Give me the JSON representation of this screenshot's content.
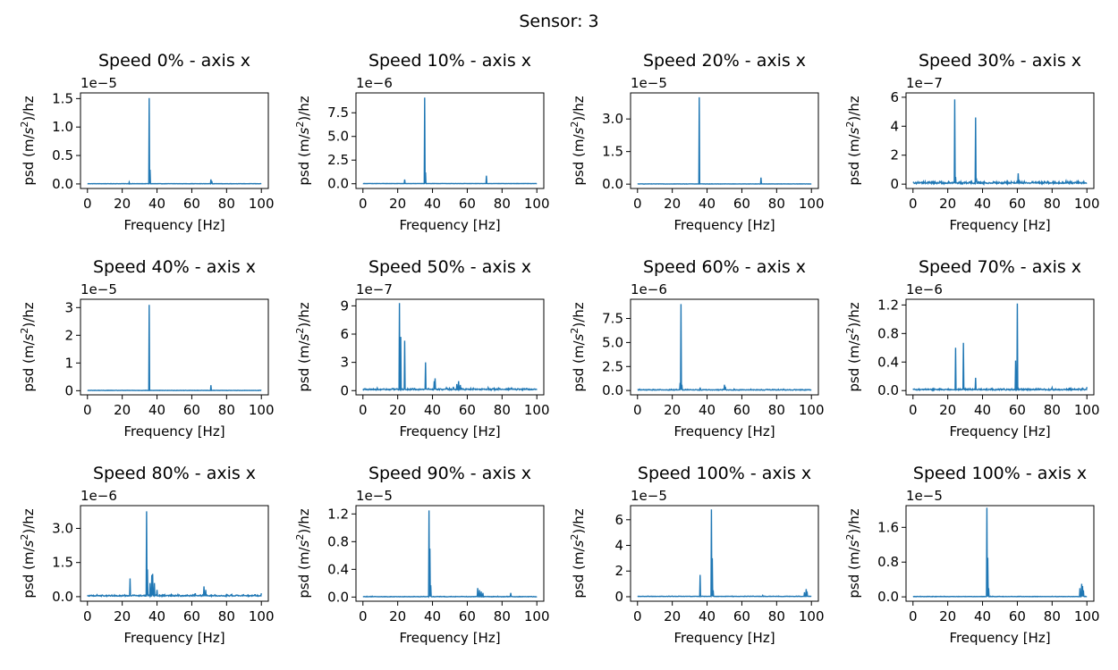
{
  "suptitle": "Sensor: 3",
  "series_color": "#1f77b4",
  "chart_data": [
    {
      "type": "line",
      "title": "Speed 0% - axis x",
      "xlabel": "Frequency [Hz]",
      "ylabel": "psd (m/s²)/hz",
      "ylabel_parts": [
        "psd (m/",
        "s",
        "2",
        ")/hz"
      ],
      "offset": "1e−5",
      "xlim": [
        -4,
        104
      ],
      "ylim": [
        -0.08,
        1.6
      ],
      "xticks": [
        0,
        20,
        40,
        60,
        80,
        100
      ],
      "xtick_labels": [
        "0",
        "20",
        "40",
        "60",
        "80",
        "100"
      ],
      "yticks": [
        0,
        0.5,
        1.0,
        1.5
      ],
      "ytick_labels": [
        "0.0",
        "0.5",
        "1.0",
        "1.5"
      ],
      "baseline": 0.004,
      "peaks": [
        [
          24,
          0.03
        ],
        [
          35.5,
          1.51
        ],
        [
          35.9,
          0.25
        ],
        [
          71,
          0.08
        ],
        [
          71.4,
          0.05
        ]
      ]
    },
    {
      "type": "line",
      "title": "Speed 10% - axis x",
      "xlabel": "Frequency [Hz]",
      "ylabel": "psd (m/s²)/hz",
      "ylabel_parts": [
        "psd (m/",
        "s",
        "2",
        ")/hz"
      ],
      "offset": "1e−6",
      "xlim": [
        -4,
        104
      ],
      "ylim": [
        -0.5,
        9.6
      ],
      "xticks": [
        0,
        20,
        40,
        60,
        80,
        100
      ],
      "xtick_labels": [
        "0",
        "20",
        "40",
        "60",
        "80",
        "100"
      ],
      "yticks": [
        0,
        2.5,
        5.0,
        7.5
      ],
      "ytick_labels": [
        "0.0",
        "2.5",
        "5.0",
        "7.5"
      ],
      "baseline": 0.02,
      "peaks": [
        [
          24,
          0.45
        ],
        [
          35.5,
          9.1
        ],
        [
          35.9,
          1.2
        ],
        [
          71,
          0.85
        ]
      ]
    },
    {
      "type": "line",
      "title": "Speed 20% - axis x",
      "xlabel": "Frequency [Hz]",
      "ylabel": "psd (m/s²)/hz",
      "ylabel_parts": [
        "psd (m/",
        "s",
        "2",
        ")/hz"
      ],
      "offset": "1e−5",
      "xlim": [
        -4,
        104
      ],
      "ylim": [
        -0.2,
        4.2
      ],
      "xticks": [
        0,
        20,
        40,
        60,
        80,
        100
      ],
      "xtick_labels": [
        "0",
        "20",
        "40",
        "60",
        "80",
        "100"
      ],
      "yticks": [
        0,
        1.5,
        3.0
      ],
      "ytick_labels": [
        "0.0",
        "1.5",
        "3.0"
      ],
      "baseline": 0.01,
      "peaks": [
        [
          35.5,
          4.0
        ],
        [
          71,
          0.3
        ]
      ]
    },
    {
      "type": "line",
      "title": "Speed 30% - axis x",
      "xlabel": "Frequency [Hz]",
      "ylabel": "psd (m/s²)/hz",
      "ylabel_parts": [
        "psd (m/",
        "s",
        "2",
        ")/hz"
      ],
      "offset": "1e−7",
      "xlim": [
        -4,
        104
      ],
      "ylim": [
        -0.3,
        6.3
      ],
      "xticks": [
        0,
        20,
        40,
        60,
        80,
        100
      ],
      "xtick_labels": [
        "0",
        "20",
        "40",
        "60",
        "80",
        "100"
      ],
      "yticks": [
        0,
        2,
        4,
        6
      ],
      "ytick_labels": [
        "0",
        "2",
        "4",
        "6"
      ],
      "baseline": 0.05,
      "noise": 0.15,
      "peaks": [
        [
          12,
          0.2
        ],
        [
          24,
          5.85
        ],
        [
          24.4,
          0.5
        ],
        [
          36,
          4.6
        ],
        [
          36.4,
          0.4
        ],
        [
          48,
          0.15
        ],
        [
          60.5,
          0.75
        ],
        [
          61,
          0.3
        ],
        [
          74,
          0.15
        ],
        [
          84,
          0.15
        ],
        [
          86,
          0.2
        ],
        [
          88,
          0.22
        ]
      ]
    },
    {
      "type": "line",
      "title": "Speed 40% - axis x",
      "xlabel": "Frequency [Hz]",
      "ylabel": "psd (m/s²)/hz",
      "ylabel_parts": [
        "psd (m/",
        "s",
        "2",
        ")/hz"
      ],
      "offset": "1e−5",
      "xlim": [
        -4,
        104
      ],
      "ylim": [
        -0.15,
        3.3
      ],
      "xticks": [
        0,
        20,
        40,
        60,
        80,
        100
      ],
      "xtick_labels": [
        "0",
        "20",
        "40",
        "60",
        "80",
        "100"
      ],
      "yticks": [
        0,
        1,
        2,
        3
      ],
      "ytick_labels": [
        "0",
        "1",
        "2",
        "3"
      ],
      "baseline": 0.01,
      "peaks": [
        [
          35.5,
          3.1
        ],
        [
          71,
          0.2
        ]
      ]
    },
    {
      "type": "line",
      "title": "Speed 50% - axis x",
      "xlabel": "Frequency [Hz]",
      "ylabel": "psd (m/s²)/hz",
      "ylabel_parts": [
        "psd (m/",
        "s",
        "2",
        ")/hz"
      ],
      "offset": "1e−7",
      "xlim": [
        -4,
        104
      ],
      "ylim": [
        -0.45,
        9.7
      ],
      "xticks": [
        0,
        20,
        40,
        60,
        80,
        100
      ],
      "xtick_labels": [
        "0",
        "20",
        "40",
        "60",
        "80",
        "100"
      ],
      "yticks": [
        0,
        3,
        6,
        9
      ],
      "ytick_labels": [
        "0",
        "3",
        "6",
        "9"
      ],
      "baseline": 0.1,
      "noise": 0.15,
      "peaks": [
        [
          12,
          0.2
        ],
        [
          21,
          9.3
        ],
        [
          21.8,
          5.7
        ],
        [
          24,
          5.3
        ],
        [
          36,
          3.0
        ],
        [
          41,
          1.0
        ],
        [
          41.6,
          1.3
        ],
        [
          48,
          0.3
        ],
        [
          52,
          0.4
        ],
        [
          54,
          0.7
        ],
        [
          55,
          1.0
        ],
        [
          56,
          0.6
        ],
        [
          72,
          0.3
        ],
        [
          84,
          0.2
        ]
      ]
    },
    {
      "type": "line",
      "title": "Speed 60% - axis x",
      "xlabel": "Frequency [Hz]",
      "ylabel": "psd (m/s²)/hz",
      "ylabel_parts": [
        "psd (m/",
        "s",
        "2",
        ")/hz"
      ],
      "offset": "1e−6",
      "xlim": [
        -4,
        104
      ],
      "ylim": [
        -0.45,
        9.5
      ],
      "xticks": [
        0,
        20,
        40,
        60,
        80,
        100
      ],
      "xtick_labels": [
        "0",
        "20",
        "40",
        "60",
        "80",
        "100"
      ],
      "yticks": [
        0,
        2.5,
        5.0,
        7.5
      ],
      "ytick_labels": [
        "0.0",
        "2.5",
        "5.0",
        "7.5"
      ],
      "baseline": 0.05,
      "noise": 0.08,
      "peaks": [
        [
          24.5,
          0.8
        ],
        [
          25,
          9.0
        ],
        [
          25.4,
          0.6
        ],
        [
          36,
          0.3
        ],
        [
          50,
          0.6
        ],
        [
          50.5,
          0.4
        ]
      ]
    },
    {
      "type": "line",
      "title": "Speed 70% - axis x",
      "xlabel": "Frequency [Hz]",
      "ylabel": "psd (m/s²)/hz",
      "ylabel_parts": [
        "psd (m/",
        "s",
        "2",
        ")/hz"
      ],
      "offset": "1e−6",
      "xlim": [
        -4,
        104
      ],
      "ylim": [
        -0.06,
        1.28
      ],
      "xticks": [
        0,
        20,
        40,
        60,
        80,
        100
      ],
      "xtick_labels": [
        "0",
        "20",
        "40",
        "60",
        "80",
        "100"
      ],
      "yticks": [
        0,
        0.4,
        0.8,
        1.2
      ],
      "ytick_labels": [
        "0.0",
        "0.4",
        "0.8",
        "1.2"
      ],
      "baseline": 0.01,
      "noise": 0.02,
      "peaks": [
        [
          24.5,
          0.6
        ],
        [
          29,
          0.67
        ],
        [
          36,
          0.18
        ],
        [
          59,
          0.42
        ],
        [
          60,
          1.22
        ],
        [
          80,
          0.04
        ],
        [
          90,
          0.04
        ],
        [
          100,
          0.05
        ]
      ]
    },
    {
      "type": "line",
      "title": "Speed 80% - axis x",
      "xlabel": "Frequency [Hz]",
      "ylabel": "psd (m/s²)/hz",
      "ylabel_parts": [
        "psd (m/",
        "s",
        "2",
        ")/hz"
      ],
      "offset": "1e−6",
      "xlim": [
        -4,
        104
      ],
      "ylim": [
        -0.2,
        4.0
      ],
      "xticks": [
        0,
        20,
        40,
        60,
        80,
        100
      ],
      "xtick_labels": [
        "0",
        "20",
        "40",
        "60",
        "80",
        "100"
      ],
      "yticks": [
        0,
        1.5,
        3.0
      ],
      "ytick_labels": [
        "0.0",
        "1.5",
        "3.0"
      ],
      "baseline": 0.03,
      "noise": 0.06,
      "peaks": [
        [
          24.5,
          0.8
        ],
        [
          34,
          3.75
        ],
        [
          34.5,
          1.2
        ],
        [
          36,
          0.6
        ],
        [
          37,
          0.95
        ],
        [
          37.5,
          1.0
        ],
        [
          38.5,
          0.6
        ],
        [
          40,
          0.3
        ],
        [
          62,
          0.15
        ],
        [
          67,
          0.45
        ],
        [
          68,
          0.3
        ],
        [
          80,
          0.12
        ],
        [
          100,
          0.15
        ]
      ]
    },
    {
      "type": "line",
      "title": "Speed 90% - axis x",
      "xlabel": "Frequency [Hz]",
      "ylabel": "psd (m/s²)/hz",
      "ylabel_parts": [
        "psd (m/",
        "s",
        "2",
        ")/hz"
      ],
      "offset": "1e−5",
      "xlim": [
        -4,
        104
      ],
      "ylim": [
        -0.06,
        1.32
      ],
      "xticks": [
        0,
        20,
        40,
        60,
        80,
        100
      ],
      "xtick_labels": [
        "0",
        "20",
        "40",
        "60",
        "80",
        "100"
      ],
      "yticks": [
        0,
        0.4,
        0.8,
        1.2
      ],
      "ytick_labels": [
        "0.0",
        "0.4",
        "0.8",
        "1.2"
      ],
      "baseline": 0.004,
      "noise": 0.008,
      "peaks": [
        [
          38,
          1.25
        ],
        [
          38.5,
          0.7
        ],
        [
          39,
          0.17
        ],
        [
          66,
          0.13
        ],
        [
          67,
          0.1
        ],
        [
          68,
          0.08
        ],
        [
          69,
          0.06
        ],
        [
          85,
          0.06
        ]
      ]
    },
    {
      "type": "line",
      "title": "Speed 100% - axis x",
      "xlabel": "Frequency [Hz]",
      "ylabel": "psd (m/s²)/hz",
      "ylabel_parts": [
        "psd (m/",
        "s",
        "2",
        ")/hz"
      ],
      "offset": "1e−5",
      "xlim": [
        -4,
        104
      ],
      "ylim": [
        -0.35,
        7.1
      ],
      "xticks": [
        0,
        20,
        40,
        60,
        80,
        100
      ],
      "xtick_labels": [
        "0",
        "20",
        "40",
        "60",
        "80",
        "100"
      ],
      "yticks": [
        0,
        2,
        4,
        6
      ],
      "ytick_labels": [
        "0",
        "2",
        "4",
        "6"
      ],
      "baseline": 0.02,
      "noise": 0.03,
      "peaks": [
        [
          36,
          1.7
        ],
        [
          42.5,
          6.8
        ],
        [
          43,
          3.0
        ],
        [
          43.5,
          0.5
        ],
        [
          72,
          0.1
        ],
        [
          96,
          0.35
        ],
        [
          97,
          0.6
        ],
        [
          97.5,
          0.4
        ]
      ]
    },
    {
      "type": "line",
      "title": "Speed 100% - axis x",
      "xlabel": "Frequency [Hz]",
      "ylabel": "psd (m/s²)/hz",
      "ylabel_parts": [
        "psd (m/",
        "s",
        "2",
        ")/hz"
      ],
      "offset": "1e−5",
      "xlim": [
        -4,
        104
      ],
      "ylim": [
        -0.1,
        2.1
      ],
      "xticks": [
        0,
        20,
        40,
        60,
        80,
        100
      ],
      "xtick_labels": [
        "0",
        "20",
        "40",
        "60",
        "80",
        "100"
      ],
      "yticks": [
        0,
        0.8,
        1.6
      ],
      "ytick_labels": [
        "0.0",
        "0.8",
        "1.6"
      ],
      "baseline": 0.005,
      "noise": 0.008,
      "peaks": [
        [
          42.5,
          2.05
        ],
        [
          43,
          0.9
        ],
        [
          43.5,
          0.2
        ],
        [
          96,
          0.2
        ],
        [
          97,
          0.3
        ],
        [
          97.5,
          0.25
        ],
        [
          98,
          0.15
        ]
      ]
    }
  ]
}
